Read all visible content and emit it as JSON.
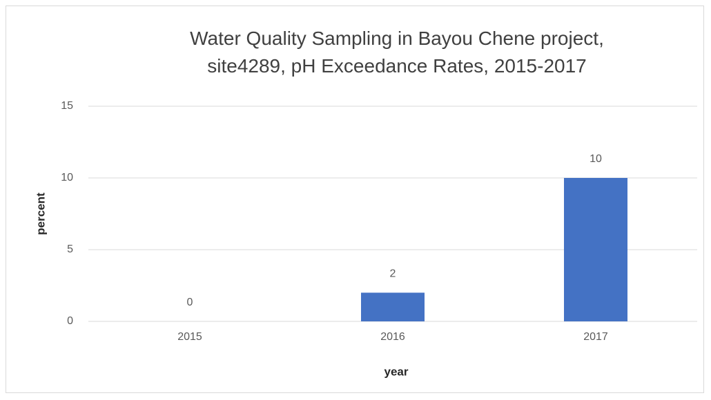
{
  "chart_data": {
    "type": "bar",
    "title": "Water Quality Sampling in Bayou Chene project, site4289, pH Exceedance Rates, 2015-2017",
    "x_label": "year",
    "y_label": "percent",
    "categories": [
      "2015",
      "2016",
      "2017"
    ],
    "values": [
      0,
      2,
      10
    ],
    "color": "#4472c4",
    "ylim": [
      0,
      15
    ],
    "yticks": [
      0,
      5,
      10,
      15
    ],
    "grid": true
  }
}
